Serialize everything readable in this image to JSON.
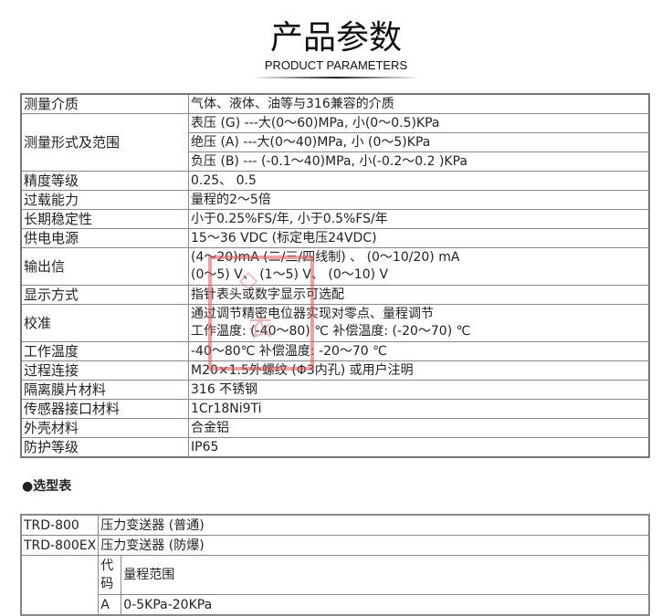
{
  "header": {
    "title": "产品参数",
    "subtitle": "PRODUCT PARAMETERS"
  },
  "spec": [
    {
      "label": "测量介质",
      "values": [
        "气体、液体、油等与316兼容的介质"
      ]
    },
    {
      "label": "测量形式及范围",
      "values": [
        "表压 (G) ---大(0～60)MPa, 小(0～0.5)KPa",
        "绝压 (A) ---大(0～40)MPa, 小 (0～5)KPa",
        "负压 (B) --- (-0.1～40)MPa,   小(-0.2～0.2 )KPa"
      ]
    },
    {
      "label": "精度等级",
      "values": [
        " 0.25、 0.5"
      ]
    },
    {
      "label": "过载能力",
      "values": [
        "量程的2～5倍"
      ]
    },
    {
      "label": "长期稳定性",
      "values": [
        "小于0.25%FS/年, 小于0.5%FS/年"
      ]
    },
    {
      "label": "供电电源",
      "values": [
        "15～36 VDC (标定电压24VDC)"
      ]
    },
    {
      "label": "输出信",
      "values": [
        "(4～20)mA (二/三/四线制) 、 (0～10/20) mA",
        " (0～5) V、 (1～5) V、 (0～10) V"
      ]
    },
    {
      "label": "显示方式",
      "values": [
        "指针表头或数字显示可选配"
      ]
    },
    {
      "label": "校准",
      "values": [
        "通过调节精密电位器实现对零点、量程调节",
        "工作温度: (-40～80) ℃ 补偿温度: (-20～70) ℃"
      ]
    },
    {
      "label": "工作温度",
      "values": [
        "-40～80℃ 补偿温度: -20～70 ℃"
      ]
    },
    {
      "label": "过程连接",
      "values": [
        "M20×1.5外螺纹 (Φ3内孔) 或用户注明"
      ]
    },
    {
      "label": "隔离膜片材料",
      "values": [
        "316 不锈钢"
      ]
    },
    {
      "label": "传感器接口材料",
      "values": [
        "1Cr18Ni9Ti"
      ]
    },
    {
      "label": "外壳材料",
      "values": [
        "合金铝"
      ]
    },
    {
      "label": "防护等级",
      "values": [
        "IP65"
      ]
    }
  ],
  "selection": {
    "heading": "●选型表",
    "models": [
      {
        "code": "TRD-800",
        "name": "压力变送器 (普通)"
      },
      {
        "code": "TRD-800EX",
        "name": "压力变送器 (防爆)"
      }
    ],
    "range_header": {
      "code": "代码",
      "range": "量程范围"
    },
    "ranges": [
      {
        "code": "A",
        "range": "0-5KPa-20KPa"
      }
    ]
  },
  "colors": {
    "stamp": "#e65050",
    "border": "#888888"
  }
}
